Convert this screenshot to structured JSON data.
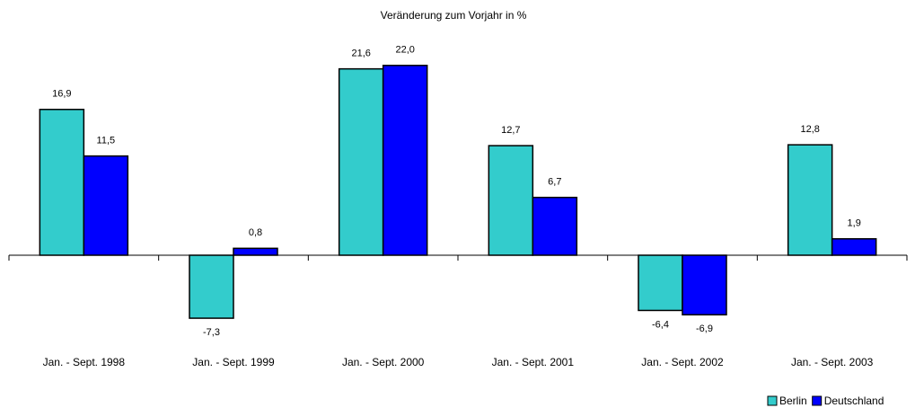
{
  "chart_data": {
    "type": "bar",
    "title": "Veränderung zum Vorjahr in %",
    "categories": [
      "Jan. - Sept. 1998",
      "Jan. - Sept. 1999",
      "Jan. - Sept. 2000",
      "Jan. - Sept. 2001",
      "Jan. - Sept. 2002",
      "Jan. - Sept. 2003"
    ],
    "series": [
      {
        "name": "Berlin",
        "color": "#33cccc",
        "values": [
          16.9,
          -7.3,
          21.6,
          12.7,
          -6.4,
          12.8
        ],
        "value_labels": [
          "16,9",
          "-7,3",
          "21,6",
          "12,7",
          "-6,4",
          "12,8"
        ]
      },
      {
        "name": "Deutschland",
        "color": "#0000ff",
        "values": [
          11.5,
          0.8,
          22.0,
          6.7,
          -6.9,
          1.9
        ],
        "value_labels": [
          "11,5",
          "0,8",
          "22,0",
          "6,7",
          "-6,9",
          "1,9"
        ]
      }
    ],
    "ylim": [
      -10,
      25
    ],
    "legend": "bottom-right"
  }
}
